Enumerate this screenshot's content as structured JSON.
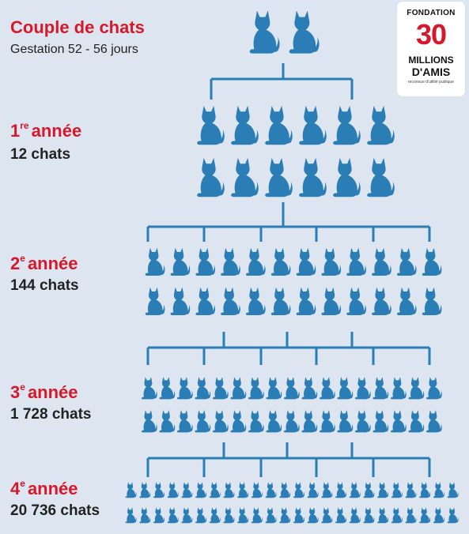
{
  "header": {
    "title": "Couple de chats",
    "subtitle": "Gestation 52 - 56 jours"
  },
  "generations": [
    {
      "ordinal": "1",
      "suffix": "re",
      "word": "année",
      "count": "12 chats",
      "cats": 12
    },
    {
      "ordinal": "2",
      "suffix": "e",
      "word": "année",
      "count": "144 chats",
      "cats": 144
    },
    {
      "ordinal": "3",
      "suffix": "e",
      "word": "année",
      "count": "1 728 chats",
      "cats": 1728
    },
    {
      "ordinal": "4",
      "suffix": "e",
      "word": "année",
      "count": "20 736 chats",
      "cats": 20736
    }
  ],
  "logo": {
    "top": "FONDATION",
    "number": "30",
    "line1": "MILLIONS",
    "line2": "D'AMIS",
    "small": "reconnue d'utilité publique"
  },
  "colors": {
    "background": "#dde6f0",
    "cat": "#2a7db5",
    "connector": "#2a7db5",
    "accent": "#d7182a",
    "text": "#222222"
  }
}
